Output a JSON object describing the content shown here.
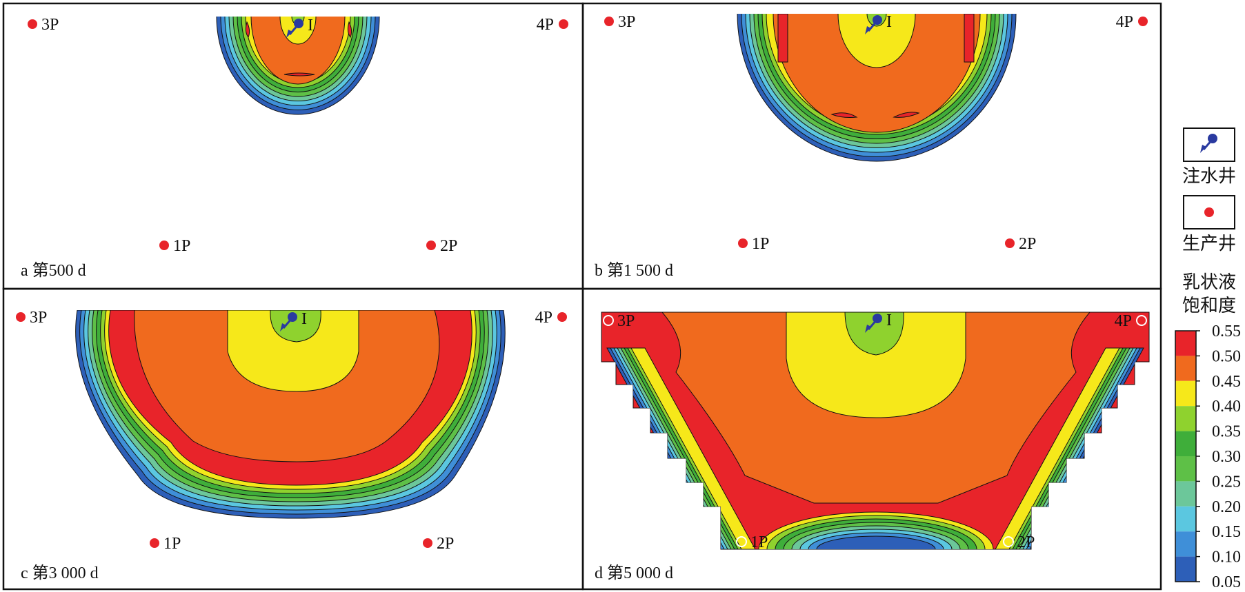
{
  "panels": [
    {
      "id": "a",
      "caption": "a 第500 d"
    },
    {
      "id": "b",
      "caption": "b 第1 500 d"
    },
    {
      "id": "c",
      "caption": "c 第3 000 d"
    },
    {
      "id": "d",
      "caption": "d 第5 000 d"
    }
  ],
  "wells": {
    "injector": "I",
    "producers": [
      "1P",
      "2P",
      "3P",
      "4P"
    ]
  },
  "legend": {
    "injector_label": "注水井",
    "producer_label": "生产井",
    "colorbar_title_line1": "乳状液",
    "colorbar_title_line2": "饱和度",
    "levels": [
      "0.55",
      "0.50",
      "0.45",
      "0.40",
      "0.35",
      "0.30",
      "0.25",
      "0.20",
      "0.15",
      "0.10",
      "0.05"
    ],
    "colors": [
      "#e8242a",
      "#f06a1e",
      "#f6e81a",
      "#8fd22e",
      "#3fae3a",
      "#5ec047",
      "#6cc79a",
      "#5bc7e0",
      "#3f8fd8",
      "#2d5fb8"
    ]
  },
  "colors": {
    "red": "#e8242a",
    "orange": "#f06a1e",
    "yellow": "#f6e81a",
    "lime": "#8fd22e",
    "green": "#3fae3a",
    "mgreen": "#5ec047",
    "teal": "#6cc79a",
    "cyan": "#5bc7e0",
    "lblue": "#3f8fd8",
    "blue": "#2d5fb8",
    "well": "#e8242a",
    "inj": "#2a3aa0"
  }
}
